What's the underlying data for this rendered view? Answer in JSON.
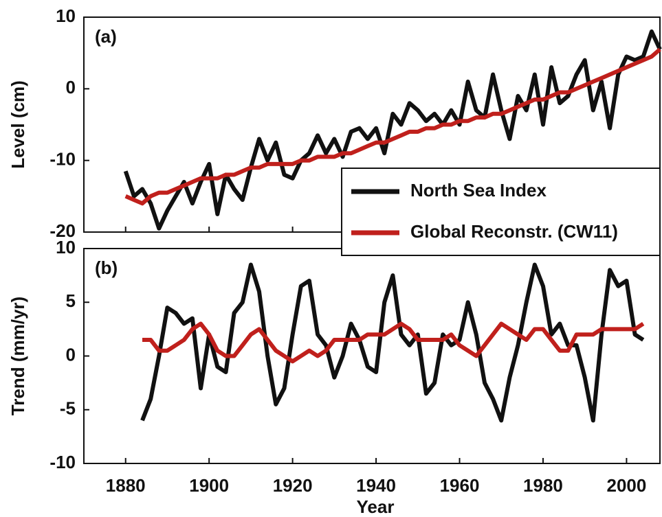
{
  "chart_data": [
    {
      "type": "line",
      "panel_label": "(a)",
      "y_label": "Level (cm)",
      "x": [
        1880,
        1882,
        1884,
        1886,
        1888,
        1890,
        1892,
        1894,
        1896,
        1898,
        1900,
        1902,
        1904,
        1906,
        1908,
        1910,
        1912,
        1914,
        1916,
        1918,
        1920,
        1922,
        1924,
        1926,
        1928,
        1930,
        1932,
        1934,
        1936,
        1938,
        1940,
        1942,
        1944,
        1946,
        1948,
        1950,
        1952,
        1954,
        1956,
        1958,
        1960,
        1962,
        1964,
        1966,
        1968,
        1970,
        1972,
        1974,
        1976,
        1978,
        1980,
        1982,
        1984,
        1986,
        1988,
        1990,
        1992,
        1994,
        1996,
        1998,
        2000,
        2002,
        2004,
        2006,
        2008
      ],
      "series": [
        {
          "name": "North Sea Index",
          "color": "#111111",
          "values": [
            -11.5,
            -15,
            -14,
            -16,
            -19.5,
            -17,
            -15,
            -13,
            -16,
            -13,
            -10.5,
            -17.5,
            -12,
            -14,
            -15.5,
            -11,
            -7,
            -10,
            -7.5,
            -12,
            -12.5,
            -10,
            -9,
            -6.5,
            -9,
            -7,
            -9.5,
            -6,
            -5.5,
            -7,
            -5.5,
            -9,
            -3.5,
            -5,
            -2,
            -3,
            -4.5,
            -3.5,
            -5,
            -3,
            -5,
            1,
            -3,
            -4,
            2,
            -3,
            -7,
            -1,
            -3,
            2,
            -5,
            3,
            -2,
            -1,
            2,
            4,
            -3,
            1,
            -5.5,
            2,
            4.5,
            4,
            4.5,
            8,
            5.5
          ]
        },
        {
          "name": "Global Reconstr. (CW11)",
          "color": "#c0201c",
          "values": [
            -15,
            -15.5,
            -16,
            -15,
            -14.5,
            -14.5,
            -14,
            -13.5,
            -13,
            -12.5,
            -12.5,
            -12.5,
            -12,
            -12,
            -11.5,
            -11,
            -11,
            -10.5,
            -10.5,
            -10.5,
            -10.5,
            -10,
            -10,
            -9.5,
            -9.5,
            -9.5,
            -9,
            -9,
            -8.5,
            -8,
            -7.5,
            -7.5,
            -7,
            -6.5,
            -6,
            -6,
            -5.5,
            -5.5,
            -5,
            -5,
            -4.5,
            -4.5,
            -4,
            -4,
            -3.5,
            -3.5,
            -3,
            -2.5,
            -2,
            -1.5,
            -1.5,
            -1,
            -0.5,
            -0.5,
            0,
            0.5,
            1,
            1.5,
            2,
            2.5,
            3,
            3.5,
            4,
            4.5,
            5.5
          ]
        }
      ],
      "xlim": [
        1870,
        2008
      ],
      "xticks": [
        1880,
        1900,
        1920,
        1940,
        1960,
        1980,
        2000
      ],
      "ylim": [
        -20,
        10
      ],
      "yticks": [
        -20,
        -10,
        0,
        10
      ],
      "legend": "lower right"
    },
    {
      "type": "line",
      "panel_label": "(b)",
      "y_label": "Trend (mm/yr)",
      "x_label": "Year",
      "x": [
        1884,
        1886,
        1888,
        1890,
        1892,
        1894,
        1896,
        1898,
        1900,
        1902,
        1904,
        1906,
        1908,
        1910,
        1912,
        1914,
        1916,
        1918,
        1920,
        1922,
        1924,
        1926,
        1928,
        1930,
        1932,
        1934,
        1936,
        1938,
        1940,
        1942,
        1944,
        1946,
        1948,
        1950,
        1952,
        1954,
        1956,
        1958,
        1960,
        1962,
        1964,
        1966,
        1968,
        1970,
        1972,
        1974,
        1976,
        1978,
        1980,
        1982,
        1984,
        1986,
        1988,
        1990,
        1992,
        1994,
        1996,
        1998,
        2000,
        2002,
        2004
      ],
      "series": [
        {
          "color": "#111111",
          "values": [
            -6,
            -4,
            0,
            4.5,
            4,
            3,
            3.5,
            -3,
            2,
            -1,
            -1.5,
            4,
            5,
            8.5,
            6,
            0,
            -4.5,
            -3,
            2,
            6.5,
            7,
            2,
            1,
            -2,
            0,
            3,
            1.5,
            -1,
            -1.5,
            5,
            7.5,
            2,
            1,
            2,
            -3.5,
            -2.5,
            2,
            1,
            1.5,
            5,
            2,
            -2.5,
            -4,
            -6,
            -2,
            1,
            5,
            8.5,
            6.5,
            2,
            3,
            1,
            1,
            -2,
            -6,
            2,
            8,
            6.5,
            7,
            2,
            1.5
          ]
        },
        {
          "color": "#c0201c",
          "values": [
            1.5,
            1.5,
            0.5,
            0.5,
            1,
            1.5,
            2.5,
            3,
            2,
            0.5,
            0,
            0,
            1,
            2,
            2.5,
            1.5,
            0.5,
            0,
            -0.5,
            0,
            0.5,
            0,
            0.5,
            1.5,
            1.5,
            1.5,
            1.5,
            2,
            2,
            2,
            2.5,
            3,
            2.5,
            1.5,
            1.5,
            1.5,
            1.5,
            2,
            1,
            0.5,
            0,
            1,
            2,
            3,
            2.5,
            2,
            1.5,
            2.5,
            2.5,
            1.5,
            0.5,
            0.5,
            2,
            2,
            2,
            2.5,
            2.5,
            2.5,
            2.5,
            2.5,
            3
          ]
        }
      ],
      "xlim": [
        1870,
        2008
      ],
      "xticks": [
        1880,
        1900,
        1920,
        1940,
        1960,
        1980,
        2000
      ],
      "ylim": [
        -10,
        10
      ],
      "yticks": [
        -10,
        -5,
        0,
        5,
        10
      ]
    }
  ]
}
